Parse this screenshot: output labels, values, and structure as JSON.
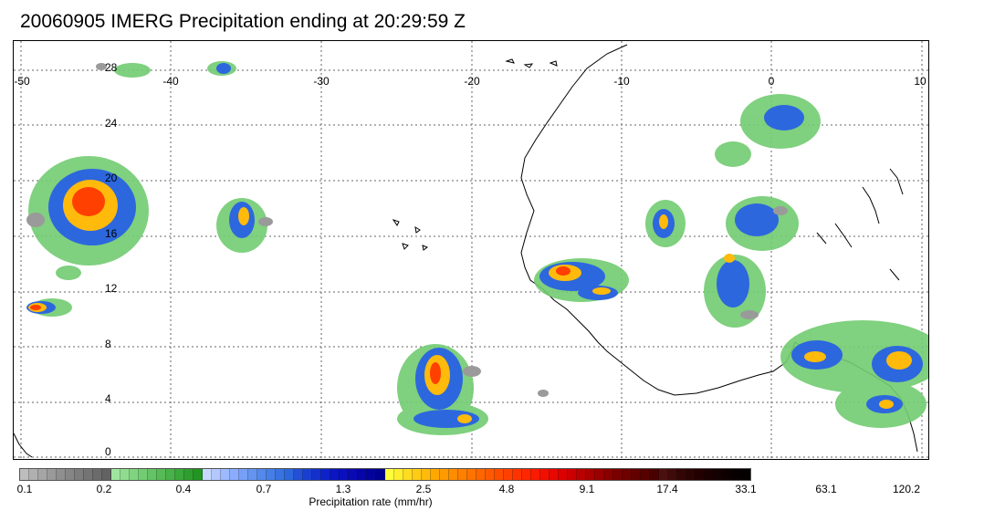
{
  "title": "20060905 IMERG Precipitation ending at 20:29:59 Z",
  "map": {
    "lon_range": [
      -50,
      10
    ],
    "lat_range": [
      -1,
      29
    ],
    "lon_ticks": [
      "-50",
      "-40",
      "-30",
      "-20",
      "-10",
      "0",
      "10"
    ],
    "lat_ticks": [
      "28",
      "24",
      "20",
      "16",
      "12",
      "8",
      "4",
      "0"
    ],
    "grid": "dotted",
    "coastline_color": "#000000"
  },
  "colorbar": {
    "title": "Precipitation rate (mm/hr)",
    "labels": [
      "0.1",
      "0.2",
      "0.4",
      "0.7",
      "1.3",
      "2.5",
      "4.8",
      "9.1",
      "17.4",
      "33.1",
      "63.1",
      "120.2"
    ],
    "colors": [
      "#bdbdbd",
      "#b0b0b0",
      "#a5a5a5",
      "#9a9a9a",
      "#8f8f8f",
      "#868686",
      "#7d7d7d",
      "#747474",
      "#6b6b6b",
      "#626262",
      "#9fe59f",
      "#8fdc8f",
      "#80d480",
      "#72cc72",
      "#64c364",
      "#56bb56",
      "#48b248",
      "#3aa83a",
      "#2e9e2e",
      "#229422",
      "#c8d8ff",
      "#b3c8ff",
      "#9dbaff",
      "#89acff",
      "#769ff7",
      "#6494f0",
      "#5488eb",
      "#457ee6",
      "#3873e2",
      "#2d67dd",
      "#2250d6",
      "#1a3fd0",
      "#1430cc",
      "#0e22c8",
      "#0a15c4",
      "#0a0fbd",
      "#0a0ab4",
      "#0606a8",
      "#03039c",
      "#000090",
      "#ffff3c",
      "#ffee2e",
      "#ffdc22",
      "#ffcb17",
      "#ffba0c",
      "#ffa800",
      "#ff9a00",
      "#ff8d00",
      "#ff8000",
      "#ff7300",
      "#ff6600",
      "#ff5a00",
      "#ff4d00",
      "#ff4000",
      "#ff3300",
      "#ff2600",
      "#fa1a00",
      "#f20f00",
      "#e80800",
      "#dd0000",
      "#cc0000",
      "#bb0000",
      "#aa0000",
      "#990000",
      "#880000",
      "#7a0000",
      "#6e0000",
      "#620000",
      "#560000",
      "#4b0000",
      "#4a1010",
      "#3f0a0a",
      "#330505",
      "#2a0303",
      "#220000",
      "#1a0000",
      "#130000",
      "#0d0000",
      "#080000",
      "#040000"
    ]
  }
}
